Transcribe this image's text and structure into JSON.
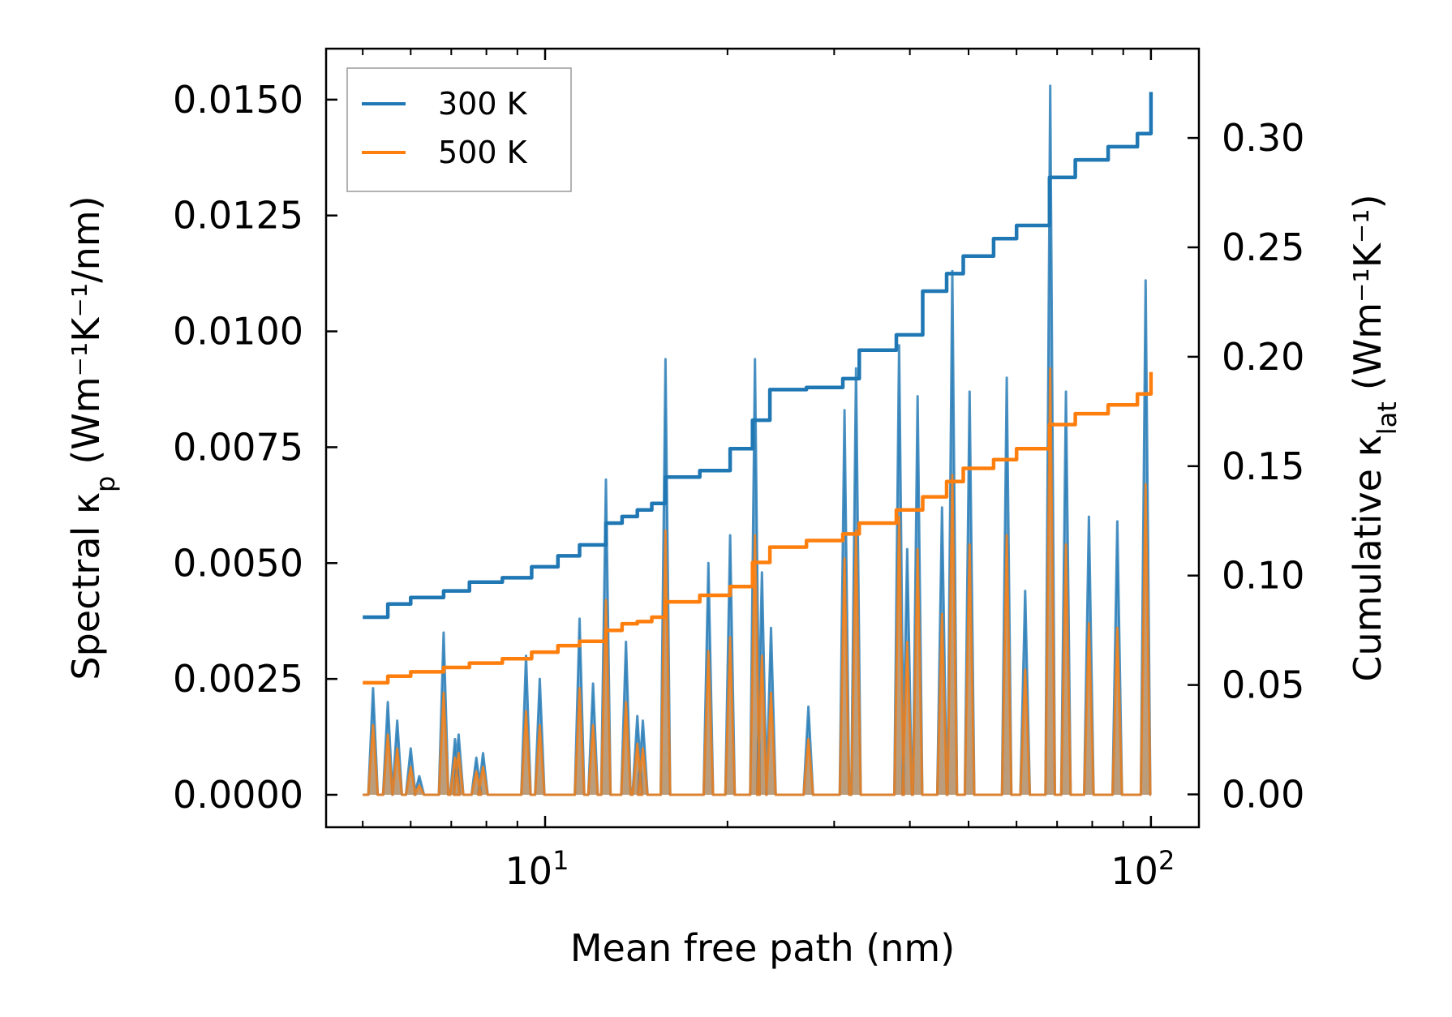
{
  "chart_data": {
    "type": "line",
    "xscale": "log",
    "xlabel": "Mean free path (nm)",
    "ylabel_left_prefix": "Spectral κ",
    "ylabel_left_sub": "p",
    "ylabel_left_units": "(Wm⁻¹K⁻¹/nm)",
    "ylabel_right_prefix": "Cumulative κ",
    "ylabel_right_sub": "lat",
    "ylabel_right_units": "(Wm⁻¹K⁻¹)",
    "xlim": [
      4.35,
      120
    ],
    "ylim_left": [
      -0.0007,
      0.0161
    ],
    "ylim_right": [
      -0.015,
      0.3408
    ],
    "x_major_ticks": [
      {
        "value": 10,
        "base": "10",
        "exp": "1"
      },
      {
        "value": 100,
        "base": "10",
        "exp": "2"
      }
    ],
    "y_left_ticks": [
      "0.0000",
      "0.0025",
      "0.0050",
      "0.0075",
      "0.0100",
      "0.0125",
      "0.0150"
    ],
    "y_left_tick_values": [
      0,
      0.0025,
      0.005,
      0.0075,
      0.01,
      0.0125,
      0.015
    ],
    "y_right_ticks": [
      "0.00",
      "0.05",
      "0.10",
      "0.15",
      "0.20",
      "0.25",
      "0.30"
    ],
    "y_right_tick_values": [
      0,
      0.05,
      0.1,
      0.15,
      0.2,
      0.25,
      0.3
    ],
    "legend": {
      "position": "top-left",
      "entries": [
        {
          "label": "300 K",
          "color": "#1f77b4"
        },
        {
          "label": "500 K",
          "color": "#ff7f0e"
        }
      ]
    },
    "series": [
      {
        "name": "300 K spectral",
        "axis": "left",
        "color": "#1f77b4",
        "peaks": [
          [
            5.2,
            0.0023
          ],
          [
            5.5,
            0.002
          ],
          [
            5.7,
            0.0016
          ],
          [
            6.0,
            0.001
          ],
          [
            6.2,
            0.0004
          ],
          [
            6.8,
            0.0035
          ],
          [
            7.1,
            0.0012
          ],
          [
            7.2,
            0.0013
          ],
          [
            7.7,
            0.0008
          ],
          [
            7.9,
            0.0009
          ],
          [
            9.3,
            0.003
          ],
          [
            9.8,
            0.0025
          ],
          [
            11.4,
            0.0038
          ],
          [
            12.0,
            0.0024
          ],
          [
            12.6,
            0.0068
          ],
          [
            13.6,
            0.0033
          ],
          [
            14.2,
            0.0017
          ],
          [
            14.5,
            0.0016
          ],
          [
            15.8,
            0.0094
          ],
          [
            18.6,
            0.005
          ],
          [
            20.2,
            0.0056
          ],
          [
            22.2,
            0.0094
          ],
          [
            22.8,
            0.0048
          ],
          [
            23.6,
            0.0036
          ],
          [
            27.2,
            0.0019
          ],
          [
            31.2,
            0.0083
          ],
          [
            32.6,
            0.0092
          ],
          [
            38.4,
            0.0097
          ],
          [
            39.6,
            0.0053
          ],
          [
            41.2,
            0.0086
          ],
          [
            45.2,
            0.0062
          ],
          [
            47.0,
            0.0113
          ],
          [
            50.2,
            0.0087
          ],
          [
            57.8,
            0.009
          ],
          [
            62.0,
            0.0044
          ],
          [
            68.2,
            0.0153
          ],
          [
            72.4,
            0.0087
          ],
          [
            79.0,
            0.006
          ],
          [
            88.0,
            0.0059
          ],
          [
            98.0,
            0.0111
          ]
        ]
      },
      {
        "name": "500 K spectral",
        "axis": "left",
        "color": "#ff7f0e",
        "peaks": [
          [
            5.2,
            0.0015
          ],
          [
            5.5,
            0.0013
          ],
          [
            5.7,
            0.001
          ],
          [
            6.0,
            0.0006
          ],
          [
            6.2,
            0.0002
          ],
          [
            6.8,
            0.0022
          ],
          [
            7.1,
            0.0008
          ],
          [
            7.2,
            0.0009
          ],
          [
            7.7,
            0.0005
          ],
          [
            7.9,
            0.0006
          ],
          [
            9.3,
            0.0018
          ],
          [
            9.8,
            0.0015
          ],
          [
            11.4,
            0.0023
          ],
          [
            12.0,
            0.0015
          ],
          [
            12.6,
            0.0042
          ],
          [
            13.6,
            0.002
          ],
          [
            14.2,
            0.0011
          ],
          [
            14.5,
            0.001
          ],
          [
            15.8,
            0.0057
          ],
          [
            18.6,
            0.0031
          ],
          [
            20.2,
            0.0034
          ],
          [
            22.2,
            0.0056
          ],
          [
            22.8,
            0.003
          ],
          [
            23.6,
            0.0022
          ],
          [
            27.2,
            0.0012
          ],
          [
            31.2,
            0.0051
          ],
          [
            32.6,
            0.0057
          ],
          [
            38.4,
            0.006
          ],
          [
            39.6,
            0.0033
          ],
          [
            41.2,
            0.0053
          ],
          [
            45.2,
            0.0039
          ],
          [
            47.0,
            0.0069
          ],
          [
            50.2,
            0.0054
          ],
          [
            57.8,
            0.0056
          ],
          [
            62.0,
            0.0027
          ],
          [
            68.2,
            0.0092
          ],
          [
            72.4,
            0.0054
          ],
          [
            79.0,
            0.0037
          ],
          [
            88.0,
            0.0036
          ],
          [
            98.0,
            0.0067
          ]
        ]
      },
      {
        "name": "300 K",
        "axis": "right",
        "color": "#1f77b4",
        "x": [
          5.0,
          5.5,
          6.0,
          6.8,
          7.5,
          8.5,
          9.5,
          10.5,
          11.4,
          12.6,
          13.4,
          14.2,
          15.0,
          15.8,
          18.0,
          20.2,
          22.0,
          23.5,
          27.0,
          31.0,
          33.0,
          38.0,
          42.0,
          46.0,
          49.0,
          55.0,
          60.0,
          68.0,
          75.0,
          85.0,
          95.0,
          100.0
        ],
        "y": [
          0.081,
          0.087,
          0.09,
          0.093,
          0.097,
          0.099,
          0.104,
          0.109,
          0.114,
          0.124,
          0.127,
          0.13,
          0.133,
          0.145,
          0.148,
          0.158,
          0.171,
          0.185,
          0.186,
          0.19,
          0.203,
          0.21,
          0.23,
          0.238,
          0.246,
          0.254,
          0.26,
          0.282,
          0.29,
          0.296,
          0.302,
          0.321
        ]
      },
      {
        "name": "500 K",
        "axis": "right",
        "color": "#ff7f0e",
        "x": [
          5.0,
          5.5,
          6.0,
          6.8,
          7.5,
          8.5,
          9.5,
          10.5,
          11.4,
          12.6,
          13.4,
          14.2,
          15.0,
          15.8,
          18.0,
          20.2,
          22.0,
          23.5,
          27.0,
          31.0,
          33.0,
          38.0,
          42.0,
          46.0,
          49.0,
          55.0,
          60.0,
          68.0,
          75.0,
          85.0,
          95.0,
          100.0
        ],
        "y": [
          0.051,
          0.054,
          0.056,
          0.058,
          0.06,
          0.062,
          0.065,
          0.068,
          0.07,
          0.075,
          0.078,
          0.079,
          0.081,
          0.088,
          0.091,
          0.095,
          0.106,
          0.113,
          0.116,
          0.119,
          0.124,
          0.13,
          0.136,
          0.143,
          0.149,
          0.153,
          0.158,
          0.169,
          0.174,
          0.178,
          0.183,
          0.193
        ]
      }
    ]
  }
}
